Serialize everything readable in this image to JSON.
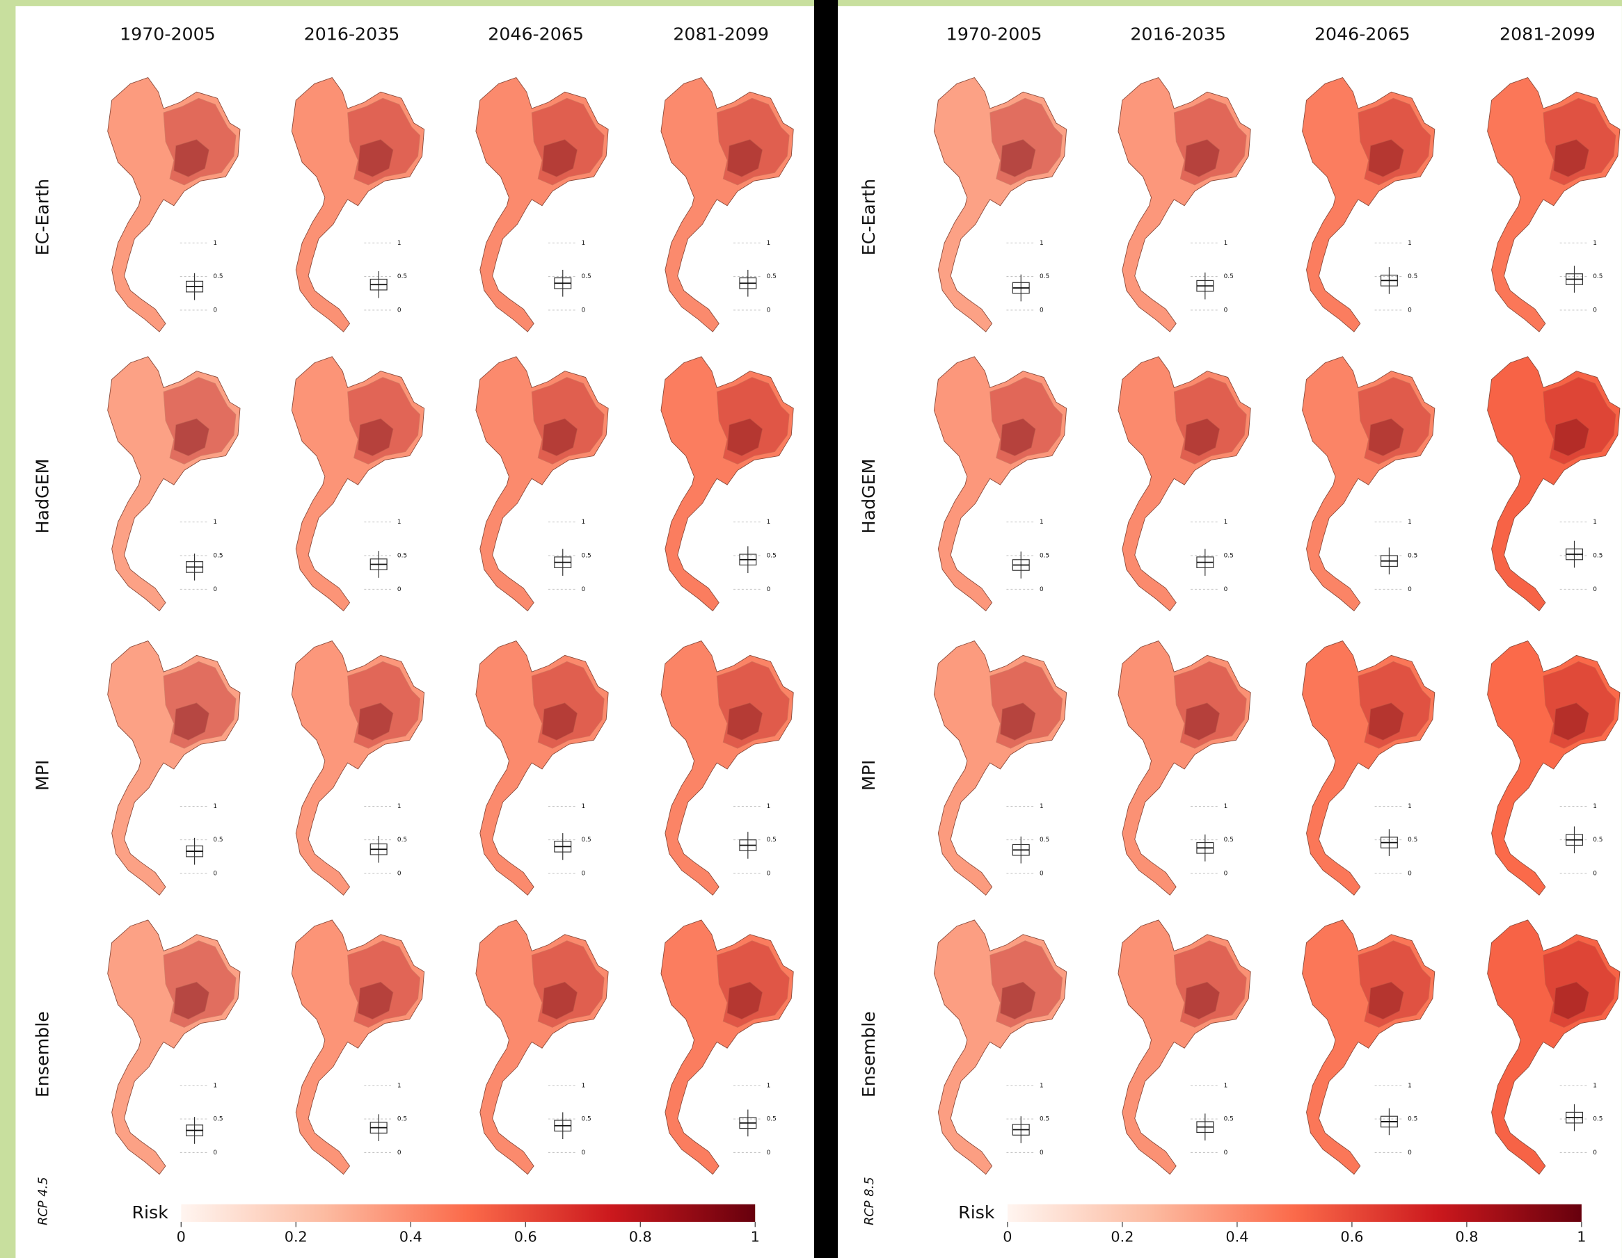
{
  "panels": [
    {
      "scenario": "RCP 4.5",
      "periods": [
        "1970-2005",
        "2016-2035",
        "2046-2065",
        "2081-2099"
      ],
      "models": [
        "EC-Earth",
        "HadGEM",
        "MPI",
        "Ensemble"
      ],
      "median_risk": [
        [
          0.35,
          0.38,
          0.4,
          0.4
        ],
        [
          0.33,
          0.37,
          0.4,
          0.44
        ],
        [
          0.33,
          0.36,
          0.4,
          0.42
        ],
        [
          0.33,
          0.37,
          0.4,
          0.44
        ]
      ],
      "boxplot_ticks": [
        1,
        0.5,
        0
      ],
      "colorbar": {
        "label": "Risk",
        "ticks": [
          0,
          0.2,
          0.4,
          0.6,
          0.8,
          1
        ]
      }
    },
    {
      "scenario": "RCP 8.5",
      "periods": [
        "1970-2005",
        "2016-2035",
        "2046-2065",
        "2081-2099"
      ],
      "models": [
        "EC-Earth",
        "HadGEM",
        "MPI",
        "Ensemble"
      ],
      "median_risk": [
        [
          0.33,
          0.36,
          0.44,
          0.46
        ],
        [
          0.36,
          0.4,
          0.42,
          0.52
        ],
        [
          0.35,
          0.38,
          0.46,
          0.5
        ],
        [
          0.34,
          0.38,
          0.46,
          0.52
        ]
      ],
      "boxplot_ticks": [
        1,
        0.5,
        0
      ],
      "colorbar": {
        "label": "Risk",
        "ticks": [
          0,
          0.2,
          0.4,
          0.6,
          0.8,
          1
        ]
      }
    }
  ]
}
